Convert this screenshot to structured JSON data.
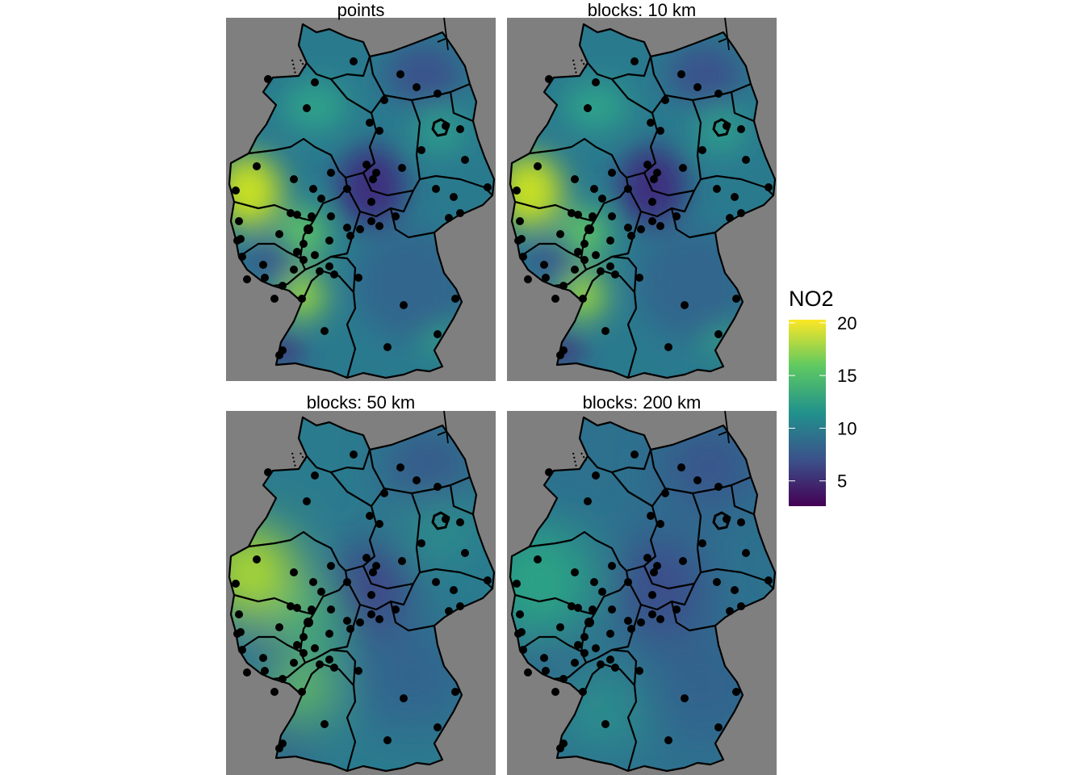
{
  "colors": {
    "panel_background": "#7f7f7f",
    "boundary": "#000000",
    "point": "#000000",
    "palette": [
      "#440154",
      "#3b528b",
      "#21918c",
      "#5ec962",
      "#fde725"
    ]
  },
  "panels": [
    {
      "title": "points"
    },
    {
      "title": "blocks: 10 km"
    },
    {
      "title": "blocks: 50 km"
    },
    {
      "title": "blocks: 200 km"
    }
  ],
  "legend": {
    "title": "NO2",
    "range": [
      2.6,
      20.3
    ],
    "breaks": [
      {
        "value": 20,
        "label": "20"
      },
      {
        "value": 15,
        "label": "15"
      },
      {
        "value": 10,
        "label": "10"
      },
      {
        "value": 5,
        "label": "5"
      }
    ]
  }
}
